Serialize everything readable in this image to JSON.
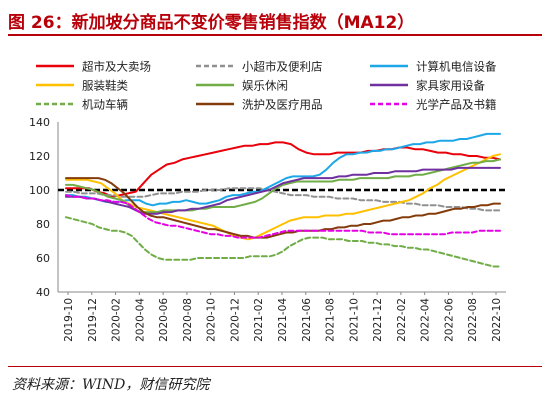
{
  "title": "图 26：新加坡分商品不变价零售销售指数（MA12）",
  "source": "资料来源：WIND，财信研究院",
  "chart_data": {
    "type": "line",
    "y_axis": {
      "min": 40,
      "max": 140,
      "ticks": [
        40,
        60,
        80,
        100,
        120,
        140
      ]
    },
    "x_tick_labels": [
      "2019-10",
      "2019-12",
      "2020-02",
      "2020-04",
      "2020-06",
      "2020-08",
      "2020-10",
      "2020-12",
      "2021-02",
      "2021-04",
      "2021-06",
      "2021-08",
      "2021-10",
      "2021-12",
      "2022-02",
      "2022-04",
      "2022-06",
      "2022-08",
      "2022-10"
    ],
    "reference_line": {
      "y": 100,
      "style": "dashed",
      "color": "#000000"
    },
    "series": [
      {
        "name": "超市及大卖场",
        "color": "#e8000b",
        "dash": "solid",
        "values": [
          101,
          101,
          101,
          101,
          99,
          98,
          96,
          97,
          98,
          99,
          104,
          109,
          112,
          115,
          116,
          118,
          119,
          120,
          121,
          122,
          123,
          124,
          125,
          126,
          126,
          127,
          127,
          128,
          128,
          127,
          124,
          122,
          121,
          121,
          121,
          122,
          122,
          122,
          122,
          123,
          123,
          124,
          124,
          125,
          125,
          124,
          124,
          123,
          122,
          122,
          121,
          121,
          120,
          120,
          119,
          119,
          118
        ]
      },
      {
        "name": "小超市及便利店",
        "color": "#909090",
        "dash": "dash",
        "values": [
          99,
          99,
          98,
          98,
          98,
          97,
          97,
          96,
          96,
          96,
          96,
          97,
          98,
          98,
          98,
          99,
          99,
          99,
          100,
          100,
          100,
          101,
          101,
          101,
          101,
          101,
          100,
          99,
          98,
          97,
          97,
          97,
          96,
          96,
          96,
          95,
          95,
          95,
          94,
          94,
          94,
          93,
          93,
          93,
          92,
          92,
          91,
          91,
          91,
          90,
          90,
          90,
          89,
          89,
          88,
          88,
          88
        ]
      },
      {
        "name": "计算机电信设备",
        "color": "#1ea7e8",
        "dash": "solid",
        "values": [
          97,
          97,
          96,
          96,
          95,
          94,
          93,
          93,
          93,
          94,
          94,
          94,
          92,
          91,
          92,
          92,
          93,
          93,
          94,
          93,
          92,
          92,
          93,
          94,
          96,
          97,
          97,
          98,
          99,
          99,
          101,
          103,
          105,
          107,
          108,
          108,
          108,
          108,
          109,
          112,
          116,
          119,
          121,
          121,
          122,
          122,
          123,
          123,
          124,
          124,
          125,
          126,
          127,
          127,
          128,
          128,
          129,
          129,
          129,
          130,
          130,
          131,
          132,
          133,
          133,
          133
        ]
      },
      {
        "name": "服装鞋类",
        "color": "#ffc000",
        "dash": "solid",
        "values": [
          106,
          106,
          106,
          106,
          105,
          104,
          101,
          98,
          94,
          92,
          90,
          89,
          88,
          87,
          86,
          85,
          84,
          83,
          82,
          81,
          80,
          79,
          77,
          75,
          73,
          72,
          71,
          72,
          74,
          76,
          78,
          80,
          82,
          83,
          84,
          84,
          84,
          85,
          85,
          85,
          86,
          86,
          87,
          88,
          89,
          90,
          91,
          92,
          93,
          94,
          96,
          98,
          101,
          103,
          106,
          108,
          110,
          112,
          114,
          116,
          118,
          120,
          121
        ]
      },
      {
        "name": "娱乐休闲",
        "color": "#70ad47",
        "dash": "solid",
        "values": [
          103,
          103,
          102,
          101,
          100,
          98,
          96,
          95,
          94,
          91,
          88,
          87,
          87,
          87,
          88,
          88,
          88,
          88,
          88,
          89,
          89,
          90,
          90,
          90,
          90,
          91,
          92,
          93,
          95,
          98,
          101,
          103,
          104,
          105,
          105,
          105,
          105,
          105,
          105,
          106,
          106,
          106,
          107,
          107,
          107,
          107,
          107,
          108,
          108,
          108,
          109,
          109,
          110,
          111,
          112,
          113,
          114,
          115,
          116,
          116,
          117,
          117,
          118
        ]
      },
      {
        "name": "家具家用设备",
        "color": "#7030a0",
        "dash": "solid",
        "values": [
          96,
          96,
          96,
          95,
          95,
          94,
          93,
          92,
          91,
          90,
          88,
          86,
          86,
          86,
          87,
          87,
          88,
          88,
          89,
          89,
          90,
          91,
          92,
          94,
          95,
          96,
          97,
          98,
          99,
          100,
          102,
          104,
          105,
          106,
          107,
          107,
          107,
          107,
          107,
          108,
          108,
          109,
          109,
          109,
          110,
          110,
          110,
          111,
          111,
          111,
          111,
          112,
          112,
          112,
          112,
          112,
          113,
          113,
          113,
          113,
          113,
          113,
          113
        ]
      },
      {
        "name": "机动车辆",
        "color": "#70ad47",
        "dash": "dash",
        "values": [
          84,
          83,
          82,
          81,
          80,
          78,
          77,
          76,
          76,
          75,
          73,
          69,
          65,
          62,
          60,
          59,
          59,
          59,
          59,
          59,
          60,
          60,
          60,
          60,
          60,
          60,
          60,
          60,
          61,
          61,
          61,
          61,
          62,
          64,
          67,
          69,
          71,
          72,
          72,
          72,
          71,
          71,
          71,
          70,
          70,
          70,
          69,
          69,
          68,
          68,
          67,
          67,
          66,
          66,
          65,
          65,
          64,
          63,
          62,
          61,
          60,
          59,
          58,
          57,
          56,
          55,
          55
        ]
      },
      {
        "name": "洗护及医疗用品",
        "color": "#843c0c",
        "dash": "solid",
        "values": [
          107,
          107,
          107,
          107,
          107,
          107,
          106,
          104,
          101,
          98,
          94,
          90,
          87,
          85,
          84,
          84,
          83,
          82,
          81,
          80,
          79,
          78,
          77,
          77,
          76,
          75,
          74,
          73,
          73,
          72,
          72,
          72,
          73,
          74,
          75,
          75,
          76,
          76,
          76,
          76,
          77,
          77,
          78,
          78,
          79,
          79,
          80,
          80,
          81,
          82,
          82,
          83,
          84,
          84,
          85,
          85,
          86,
          86,
          87,
          88,
          89,
          89,
          90,
          90,
          91,
          91,
          92,
          92
        ]
      },
      {
        "name": "光学产品及书籍",
        "color": "#e600e6",
        "dash": "dash",
        "values": [
          97,
          96,
          96,
          95,
          95,
          94,
          94,
          93,
          93,
          92,
          89,
          86,
          83,
          81,
          80,
          79,
          79,
          78,
          77,
          76,
          75,
          74,
          74,
          73,
          73,
          72,
          72,
          72,
          72,
          73,
          74,
          75,
          76,
          76,
          76,
          76,
          76,
          76,
          76,
          76,
          76,
          76,
          76,
          76,
          75,
          75,
          75,
          74,
          74,
          74,
          74,
          74,
          74,
          74,
          74,
          74,
          75,
          75,
          75,
          75,
          76,
          76,
          76,
          76
        ]
      }
    ]
  }
}
